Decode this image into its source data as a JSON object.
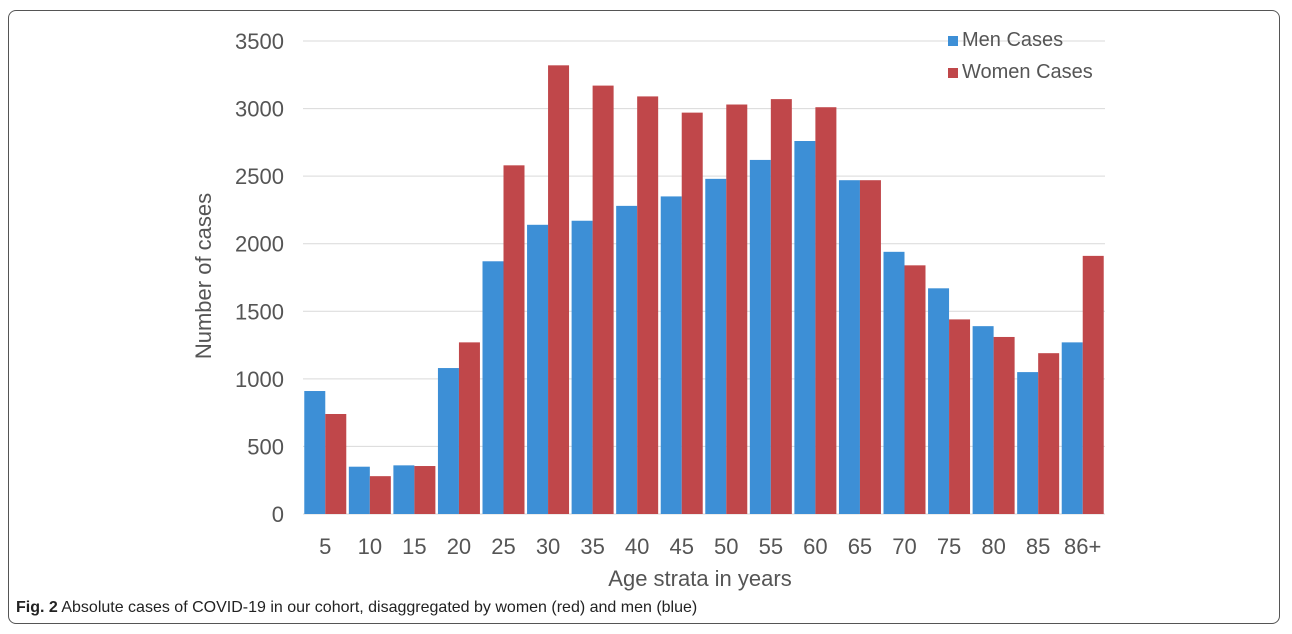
{
  "chart_data": {
    "type": "bar",
    "categories": [
      "5",
      "10",
      "15",
      "20",
      "25",
      "30",
      "35",
      "40",
      "45",
      "50",
      "55",
      "60",
      "65",
      "70",
      "75",
      "80",
      "85",
      "86+"
    ],
    "series": [
      {
        "name": "Men Cases",
        "color": "#3d8fd6",
        "values": [
          910,
          350,
          360,
          1080,
          1870,
          2140,
          2170,
          2280,
          2350,
          2480,
          2620,
          2760,
          2470,
          1940,
          1670,
          1390,
          1050,
          1270
        ]
      },
      {
        "name": "Women Cases",
        "color": "#c0474a",
        "values": [
          740,
          280,
          355,
          1270,
          2580,
          3320,
          3170,
          3090,
          2970,
          3030,
          3070,
          3010,
          2470,
          1840,
          1440,
          1310,
          1190,
          1910
        ]
      }
    ],
    "xlabel": "Age strata in years",
    "ylabel": "Number of cases",
    "ylim": [
      0,
      3500
    ],
    "yticks": [
      0,
      500,
      1000,
      1500,
      2000,
      2500,
      3000,
      3500
    ],
    "grid": true,
    "legend_position": "top-right"
  },
  "caption": {
    "label": "Fig. 2",
    "text": " Absolute cases of COVID-19 in our cohort, disaggregated by women (red) and men (blue)"
  }
}
